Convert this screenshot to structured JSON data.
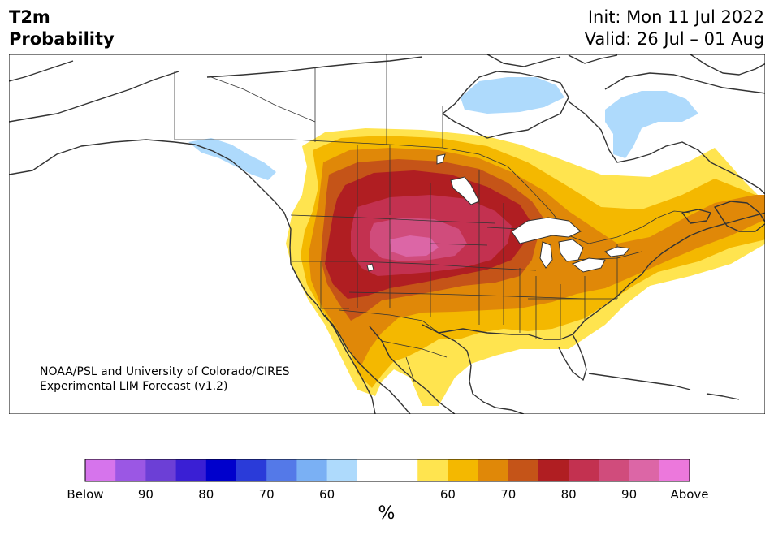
{
  "header": {
    "variable": "T2m",
    "product": "Probability",
    "init": "Init: Mon 11 Jul 2022",
    "valid": "Valid: 26 Jul – 01 Aug"
  },
  "credit": {
    "line1": "NOAA/PSL and University of Colorado/CIRES",
    "line2": "Experimental LIM Forecast (v1.2)"
  },
  "colorbar": {
    "unit": "%",
    "colors": [
      "#d674ec",
      "#9b57e4",
      "#6c3fd6",
      "#3a1fd4",
      "#0000cc",
      "#2a3bd9",
      "#5479e8",
      "#7ab0f4",
      "#aedafc",
      "#ffffff",
      "#ffffff",
      "#ffe44f",
      "#f4b800",
      "#e08808",
      "#c55418",
      "#b01e22",
      "#c33150",
      "#d04c7c",
      "#dc66a6",
      "#ec78dc"
    ],
    "labels": [
      "Below",
      "90",
      "80",
      "70",
      "60",
      "60",
      "70",
      "80",
      "90",
      "Above"
    ]
  },
  "legend_colors": {
    "above_60": "#ffe44f",
    "above_65": "#f4b800",
    "above_70": "#e08808",
    "above_75": "#c55418",
    "above_80": "#b01e22",
    "above_85": "#c33150",
    "above_90": "#d04c7c",
    "below_60": "#aedafc"
  }
}
